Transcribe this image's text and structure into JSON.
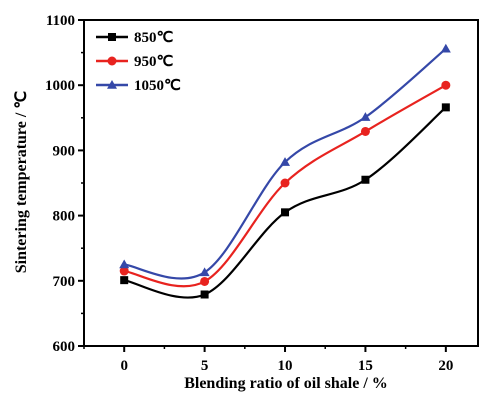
{
  "chart_data": {
    "type": "line",
    "xlabel": "Blending ratio of oil shale / %",
    "ylabel": "Sintering temperature / ℃",
    "x": [
      0,
      5,
      10,
      15,
      20
    ],
    "xlim": [
      -2.5,
      22
    ],
    "ylim": [
      600,
      1100
    ],
    "xticks": [
      0,
      5,
      10,
      15,
      20
    ],
    "yticks": [
      600,
      700,
      800,
      900,
      1000,
      1100
    ],
    "xtick_labels": [
      "0",
      "5",
      "10",
      "15",
      "20"
    ],
    "ytick_labels": [
      "600",
      "700",
      "800",
      "900",
      "1000",
      "1100"
    ],
    "grid": false,
    "legend_position": "top-left",
    "smooth": true,
    "series": [
      {
        "name": "850℃",
        "color": "#000000",
        "marker": "square",
        "values": [
          701,
          679,
          805,
          855,
          966
        ]
      },
      {
        "name": "950℃",
        "color": "#e8231f",
        "marker": "circle",
        "values": [
          715,
          699,
          850,
          929,
          1000
        ]
      },
      {
        "name": "1050℃",
        "color": "#3548a8",
        "marker": "triangle",
        "values": [
          725,
          713,
          882,
          951,
          1056
        ]
      }
    ]
  }
}
